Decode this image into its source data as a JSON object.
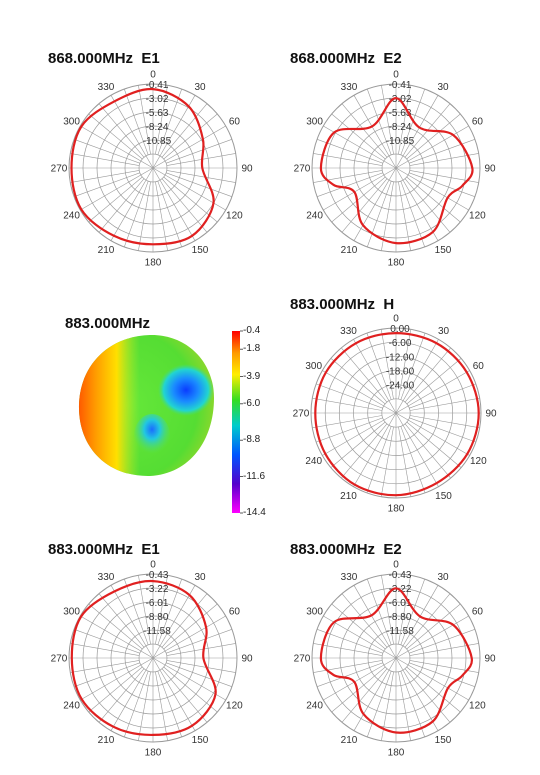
{
  "chart_data": [
    {
      "type": "polar",
      "title": "868.000MHz  E1",
      "radial_ticks": [
        "-0.41",
        "-3.02",
        "-5.63",
        "-8.24",
        "-10.85"
      ],
      "radial_range": [
        -13.46,
        -0.41
      ],
      "angle_labels": [
        "0",
        "30",
        "60",
        "90",
        "120",
        "150",
        "180",
        "210",
        "240",
        "270",
        "300",
        "330"
      ],
      "series": [
        {
          "theta": [
            0,
            30,
            60,
            90,
            120,
            150,
            180,
            210,
            240,
            270,
            300,
            330
          ],
          "r": [
            -1.2,
            -2.4,
            -4.5,
            -5.8,
            -2.6,
            -1.3,
            -1.6,
            -1.3,
            -0.6,
            -0.8,
            -0.6,
            -1.5
          ]
        }
      ]
    },
    {
      "type": "polar",
      "title": "868.000MHz  E2",
      "radial_ticks": [
        "-0.41",
        "-3.02",
        "-5.63",
        "-8.24",
        "-10.85"
      ],
      "radial_range": [
        -13.46,
        -0.41
      ],
      "angle_labels": [
        "0",
        "30",
        "60",
        "90",
        "120",
        "150",
        "180",
        "210",
        "240",
        "270",
        "300",
        "330"
      ],
      "series": [
        {
          "theta": [
            0,
            30,
            60,
            90,
            105,
            120,
            150,
            180,
            210,
            240,
            255,
            270,
            300,
            330
          ],
          "r": [
            -2.6,
            -6.2,
            -3.2,
            -1.6,
            -2.8,
            -4.2,
            -2.0,
            -1.8,
            -3.2,
            -6.0,
            -3.4,
            -1.8,
            -2.4,
            -6.0
          ]
        }
      ]
    },
    {
      "type": "heatmap",
      "title": "883.000MHz",
      "colorbar_ticks": [
        "-0.4",
        "-1.8",
        "-3.9",
        "-6.0",
        "-8.8",
        "-11.6",
        "-14.4"
      ],
      "colorbar_range": [
        -14.4,
        -0.4
      ]
    },
    {
      "type": "polar",
      "title": "883.000MHz  H",
      "radial_ticks": [
        "0.00",
        "-6.00",
        "-12.00",
        "-18.00",
        "-24.00"
      ],
      "radial_range": [
        -30,
        0
      ],
      "angle_labels": [
        "0",
        "30",
        "60",
        "90",
        "120",
        "150",
        "180",
        "210",
        "240",
        "270",
        "300",
        "330"
      ],
      "series": [
        {
          "theta": [
            0,
            30,
            60,
            90,
            120,
            150,
            180,
            210,
            240,
            270,
            300,
            330
          ],
          "r": [
            -1.8,
            -1.5,
            -1.2,
            -0.8,
            -1.0,
            -1.4,
            -1.0,
            -0.8,
            -1.2,
            -1.5,
            -1.4,
            -1.6
          ]
        }
      ]
    },
    {
      "type": "polar",
      "title": "883.000MHz  E1",
      "radial_ticks": [
        "-0.43",
        "-3.22",
        "-6.01",
        "-8.80",
        "-11.58"
      ],
      "radial_range": [
        -14.37,
        -0.43
      ],
      "angle_labels": [
        "0",
        "30",
        "60",
        "90",
        "120",
        "150",
        "180",
        "210",
        "240",
        "270",
        "300",
        "330"
      ],
      "series": [
        {
          "theta": [
            0,
            30,
            60,
            90,
            120,
            150,
            180,
            210,
            240,
            270,
            300,
            330
          ],
          "r": [
            -1.6,
            -2.3,
            -4.2,
            -6.0,
            -2.4,
            -1.4,
            -1.6,
            -1.2,
            -0.7,
            -0.9,
            -0.6,
            -1.6
          ]
        }
      ]
    },
    {
      "type": "polar",
      "title": "883.000MHz  E2",
      "radial_ticks": [
        "-0.43",
        "-3.22",
        "-6.01",
        "-8.80",
        "-11.58"
      ],
      "radial_range": [
        -14.37,
        -0.43
      ],
      "angle_labels": [
        "0",
        "30",
        "60",
        "90",
        "120",
        "150",
        "180",
        "210",
        "240",
        "270",
        "300",
        "330"
      ],
      "series": [
        {
          "theta": [
            0,
            30,
            60,
            90,
            105,
            120,
            150,
            180,
            210,
            240,
            255,
            270,
            300,
            330
          ],
          "r": [
            -2.8,
            -6.4,
            -3.4,
            -1.8,
            -3.0,
            -4.4,
            -2.2,
            -2.0,
            -3.6,
            -6.4,
            -3.6,
            -1.9,
            -2.5,
            -6.2
          ]
        }
      ]
    }
  ],
  "colors": {
    "pattern": "#e02020",
    "grid": "#9a9a9a",
    "text": "#333333"
  }
}
